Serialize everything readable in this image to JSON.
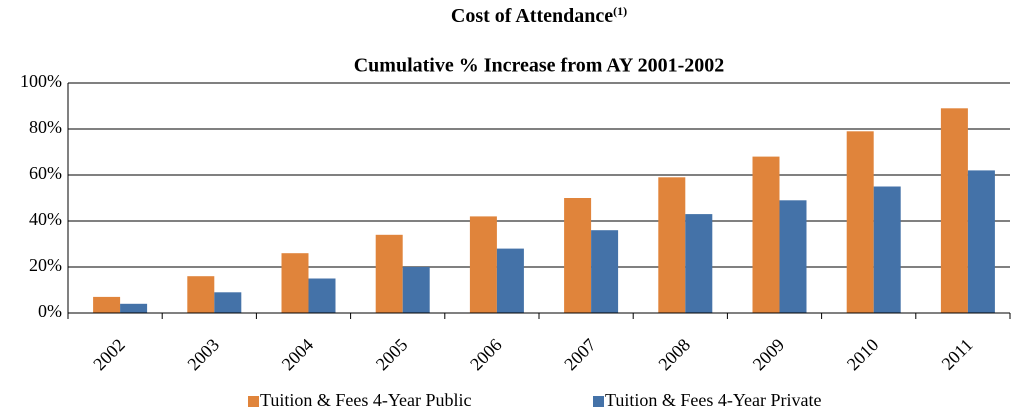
{
  "chart_data": {
    "type": "bar",
    "title": "Cost of Attendance",
    "title_note": "(1)",
    "subtitle": "Cumulative % Increase from AY 2001-2002",
    "categories": [
      "2002",
      "2003",
      "2004",
      "2005",
      "2006",
      "2007",
      "2008",
      "2009",
      "2010",
      "2011"
    ],
    "series": [
      {
        "name": "Tuition & Fees 4-Year Public",
        "color": "#e0843b",
        "values": [
          7,
          16,
          26,
          34,
          42,
          50,
          59,
          68,
          79,
          89
        ]
      },
      {
        "name": "Tuition & Fees 4-Year Private",
        "color": "#4472a8",
        "values": [
          4,
          9,
          15,
          20,
          28,
          36,
          43,
          49,
          55,
          62
        ]
      }
    ],
    "ylim": [
      0,
      100
    ],
    "yticks": [
      {
        "value": 0,
        "label": "0%"
      },
      {
        "value": 20,
        "label": "20%"
      },
      {
        "value": 40,
        "label": "40%"
      },
      {
        "value": 60,
        "label": "60%"
      },
      {
        "value": 80,
        "label": "80%"
      },
      {
        "value": 100,
        "label": "100%"
      }
    ],
    "grid": true,
    "legend": "bottom"
  }
}
